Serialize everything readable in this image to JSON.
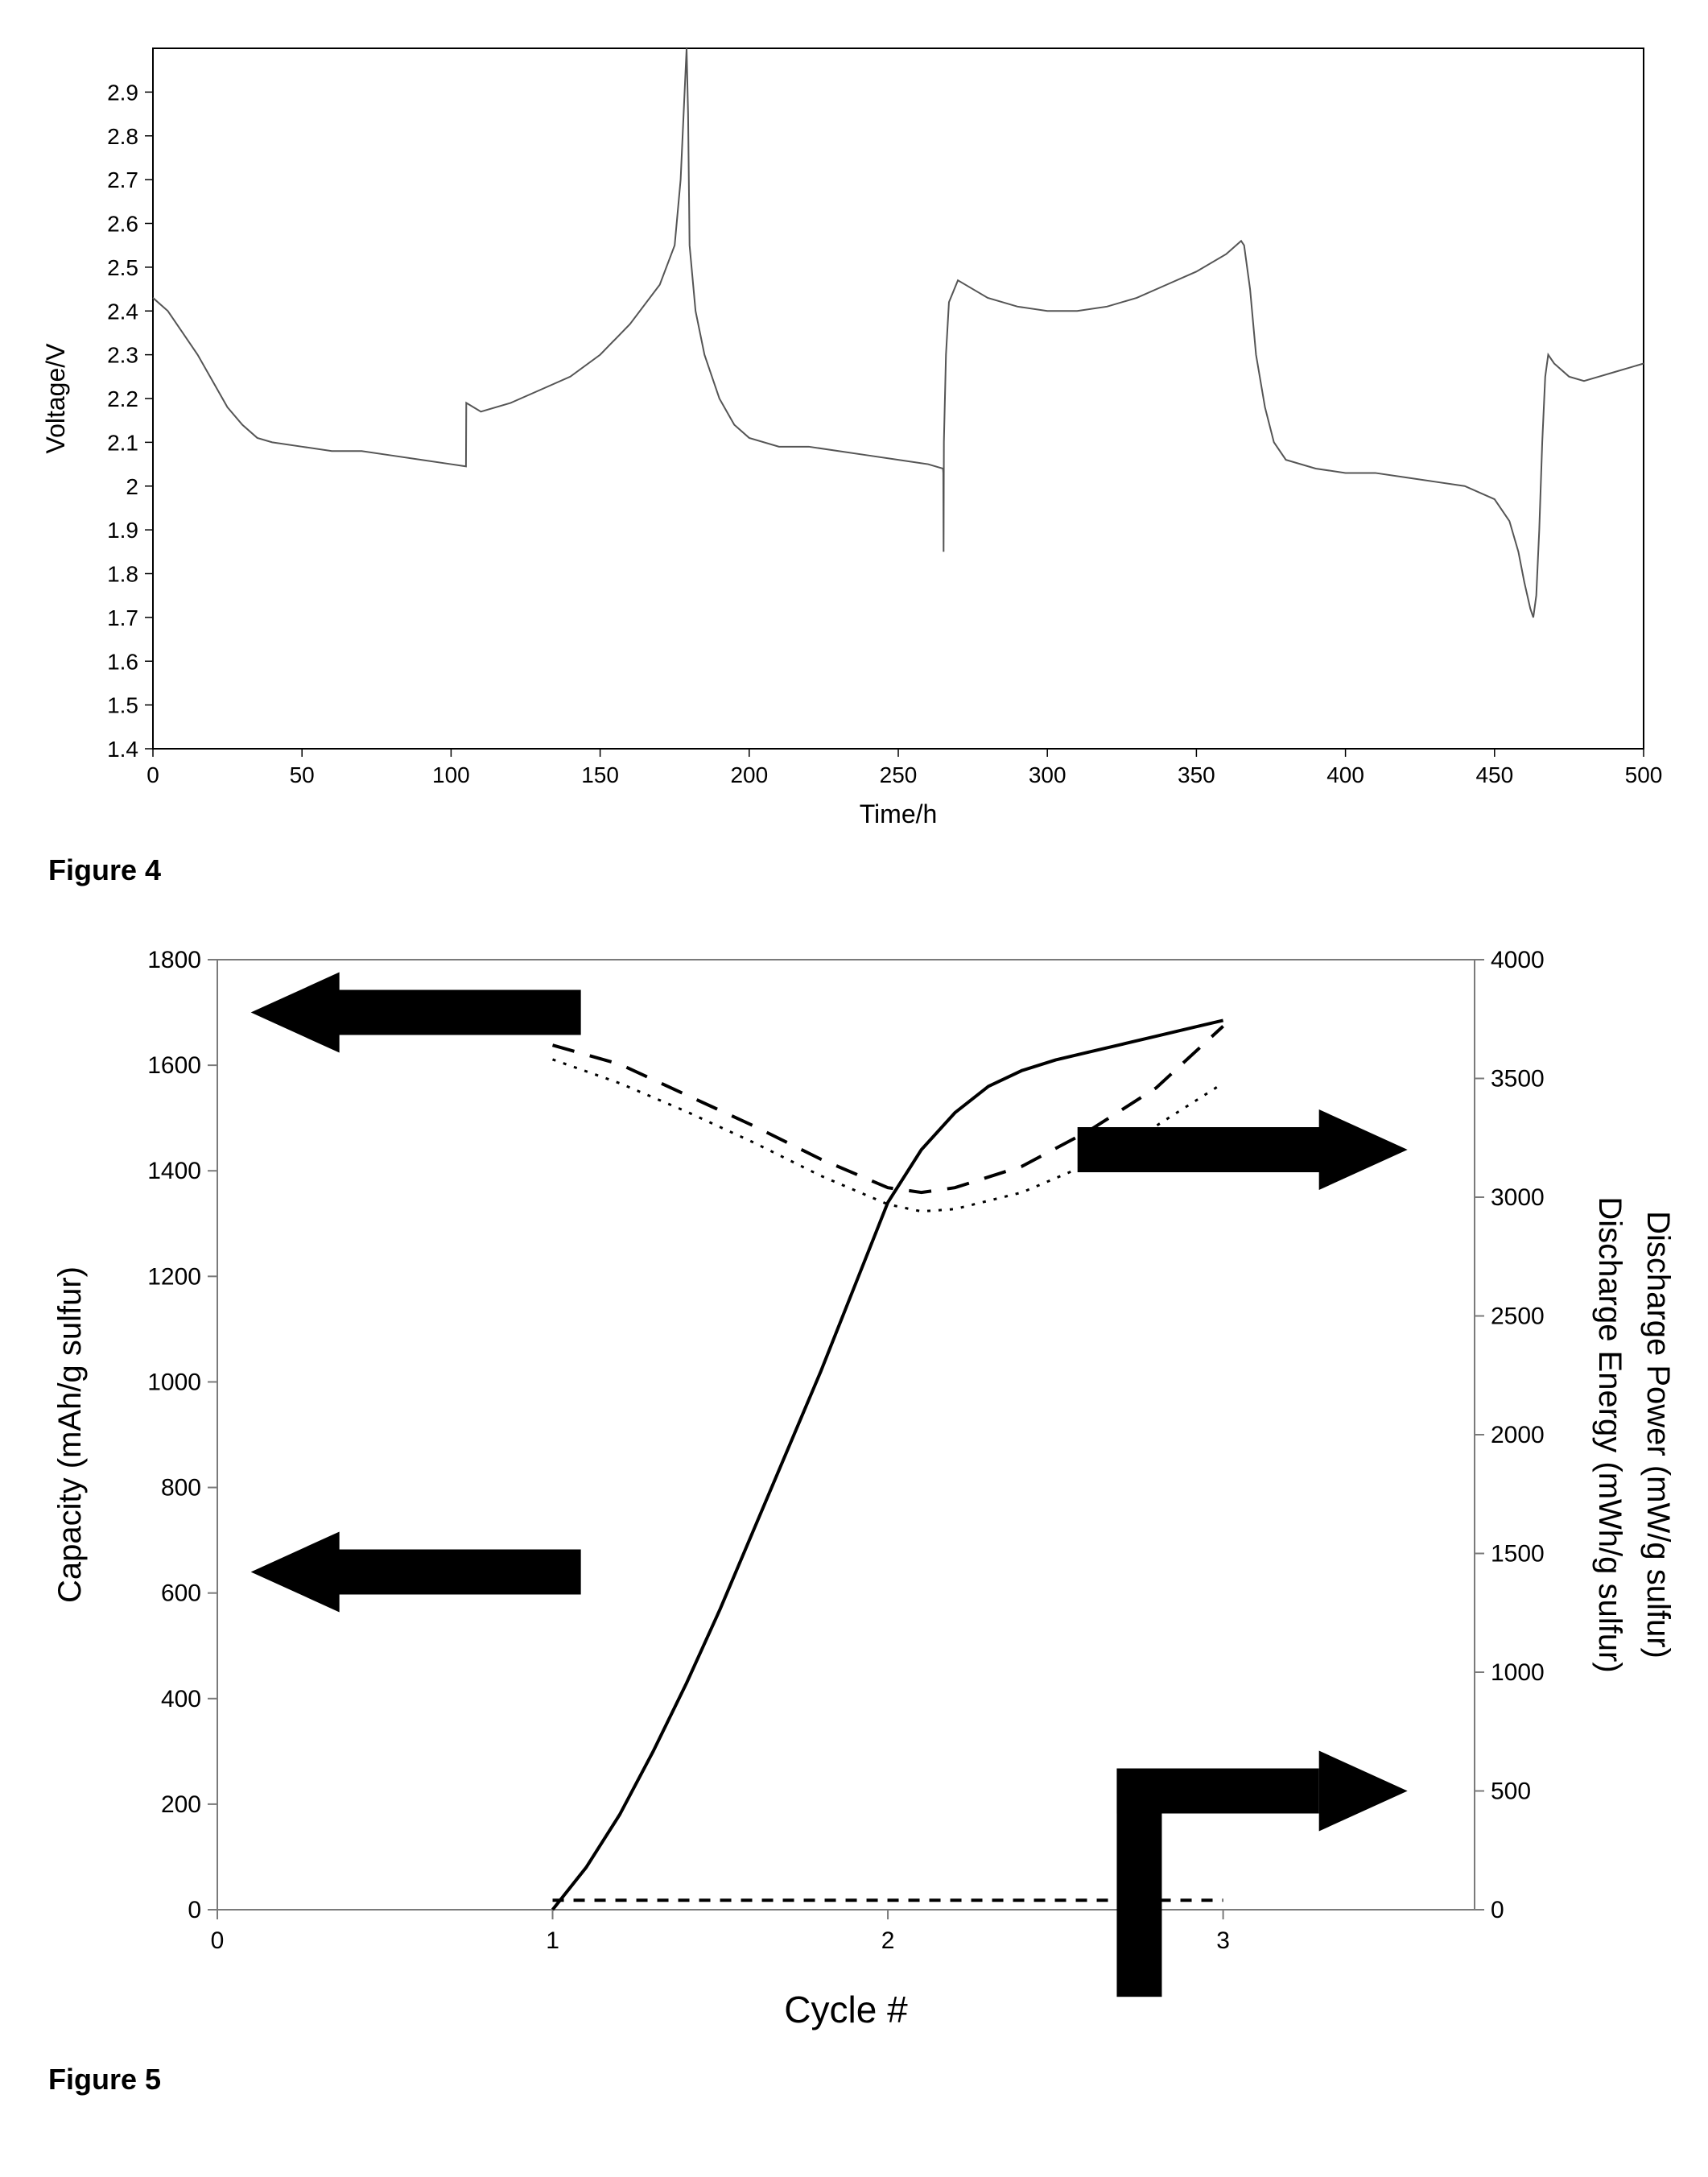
{
  "figure4": {
    "type": "line",
    "caption": "Figure 4",
    "xlabel": "Time/h",
    "ylabel": "Voltage/V",
    "xlim": [
      0,
      500
    ],
    "ylim": [
      1.4,
      3.0
    ],
    "xticks": [
      0,
      50,
      100,
      150,
      200,
      250,
      300,
      350,
      400,
      450,
      500
    ],
    "yticks": [
      1.4,
      1.5,
      1.6,
      1.7,
      1.8,
      1.9,
      2.0,
      2.1,
      2.2,
      2.3,
      2.4,
      2.5,
      2.6,
      2.7,
      2.8,
      2.9
    ],
    "line_color": "#555555",
    "line_width": 2,
    "background_color": "#ffffff",
    "border_color": "#000000",
    "tick_font_size": 28,
    "label_font_size": 32,
    "data": [
      [
        0,
        2.43
      ],
      [
        5,
        2.4
      ],
      [
        10,
        2.35
      ],
      [
        15,
        2.3
      ],
      [
        20,
        2.24
      ],
      [
        25,
        2.18
      ],
      [
        30,
        2.14
      ],
      [
        35,
        2.11
      ],
      [
        40,
        2.1
      ],
      [
        50,
        2.09
      ],
      [
        60,
        2.08
      ],
      [
        70,
        2.08
      ],
      [
        80,
        2.07
      ],
      [
        90,
        2.06
      ],
      [
        100,
        2.05
      ],
      [
        105,
        2.045
      ],
      [
        105.1,
        2.19
      ],
      [
        110,
        2.17
      ],
      [
        120,
        2.19
      ],
      [
        130,
        2.22
      ],
      [
        140,
        2.25
      ],
      [
        150,
        2.3
      ],
      [
        160,
        2.37
      ],
      [
        170,
        2.46
      ],
      [
        175,
        2.55
      ],
      [
        177,
        2.7
      ],
      [
        178,
        2.85
      ],
      [
        179,
        3.0
      ],
      [
        179.5,
        2.85
      ],
      [
        180,
        2.55
      ],
      [
        182,
        2.4
      ],
      [
        185,
        2.3
      ],
      [
        190,
        2.2
      ],
      [
        195,
        2.14
      ],
      [
        200,
        2.11
      ],
      [
        210,
        2.09
      ],
      [
        220,
        2.09
      ],
      [
        230,
        2.08
      ],
      [
        240,
        2.07
      ],
      [
        250,
        2.06
      ],
      [
        260,
        2.05
      ],
      [
        265,
        2.04
      ],
      [
        265.1,
        2.03
      ],
      [
        265.2,
        1.85
      ],
      [
        265.3,
        2.1
      ],
      [
        266,
        2.3
      ],
      [
        267,
        2.42
      ],
      [
        270,
        2.47
      ],
      [
        275,
        2.45
      ],
      [
        280,
        2.43
      ],
      [
        290,
        2.41
      ],
      [
        300,
        2.4
      ],
      [
        310,
        2.4
      ],
      [
        320,
        2.41
      ],
      [
        330,
        2.43
      ],
      [
        340,
        2.46
      ],
      [
        350,
        2.49
      ],
      [
        360,
        2.53
      ],
      [
        365,
        2.56
      ],
      [
        366,
        2.55
      ],
      [
        368,
        2.45
      ],
      [
        370,
        2.3
      ],
      [
        373,
        2.18
      ],
      [
        376,
        2.1
      ],
      [
        380,
        2.06
      ],
      [
        390,
        2.04
      ],
      [
        400,
        2.03
      ],
      [
        410,
        2.03
      ],
      [
        420,
        2.02
      ],
      [
        430,
        2.01
      ],
      [
        440,
        2.0
      ],
      [
        450,
        1.97
      ],
      [
        455,
        1.92
      ],
      [
        458,
        1.85
      ],
      [
        460,
        1.78
      ],
      [
        462,
        1.72
      ],
      [
        463,
        1.7
      ],
      [
        464,
        1.75
      ],
      [
        465,
        1.9
      ],
      [
        466,
        2.1
      ],
      [
        467,
        2.25
      ],
      [
        468,
        2.3
      ],
      [
        470,
        2.28
      ],
      [
        475,
        2.25
      ],
      [
        480,
        2.24
      ],
      [
        485,
        2.25
      ],
      [
        490,
        2.26
      ],
      [
        495,
        2.27
      ],
      [
        500,
        2.28
      ]
    ]
  },
  "figure5": {
    "type": "multi-axis-line",
    "caption": "Figure 5",
    "xlabel": "Cycle #",
    "ylabel_left": "Capacity (mAh/g sulfur)",
    "ylabel_right1": "Discharge Energy (mWh/g sulfur)",
    "ylabel_right2": "Discharge Power (mW/g sulfur)",
    "xlim": [
      0,
      3.75
    ],
    "ylim_left": [
      0,
      1800
    ],
    "ylim_right": [
      0,
      4000
    ],
    "xticks": [
      0,
      1,
      2,
      3
    ],
    "yticks_left": [
      0,
      200,
      400,
      600,
      800,
      1000,
      1200,
      1400,
      1600,
      1800
    ],
    "yticks_right": [
      0,
      500,
      1000,
      1500,
      2000,
      2500,
      3000,
      3500,
      4000
    ],
    "background_color": "#ffffff",
    "border_color": "#7a7a7a",
    "border_width": 2,
    "tick_font_size": 30,
    "label_font_size": 40,
    "arrow_color": "#000000",
    "series": {
      "capacity": {
        "style": "solid",
        "width": 4,
        "color": "#000000",
        "axis": "left",
        "data": [
          [
            1,
            0
          ],
          [
            1.1,
            80
          ],
          [
            1.2,
            180
          ],
          [
            1.3,
            300
          ],
          [
            1.4,
            430
          ],
          [
            1.5,
            570
          ],
          [
            1.6,
            720
          ],
          [
            1.7,
            870
          ],
          [
            1.8,
            1020
          ],
          [
            1.9,
            1180
          ],
          [
            2.0,
            1340
          ],
          [
            2.1,
            1440
          ],
          [
            2.2,
            1510
          ],
          [
            2.3,
            1560
          ],
          [
            2.4,
            1590
          ],
          [
            2.5,
            1610
          ],
          [
            2.6,
            1625
          ],
          [
            2.7,
            1640
          ],
          [
            2.8,
            1655
          ],
          [
            2.9,
            1670
          ],
          [
            3.0,
            1685
          ]
        ]
      },
      "discharge_energy": {
        "style": "long-dash",
        "width": 4,
        "color": "#000000",
        "axis": "right",
        "data": [
          [
            1,
            3640
          ],
          [
            1.2,
            3560
          ],
          [
            1.4,
            3430
          ],
          [
            1.6,
            3300
          ],
          [
            1.8,
            3160
          ],
          [
            2.0,
            3040
          ],
          [
            2.1,
            3020
          ],
          [
            2.2,
            3040
          ],
          [
            2.4,
            3130
          ],
          [
            2.6,
            3280
          ],
          [
            2.8,
            3460
          ],
          [
            3.0,
            3720
          ]
        ]
      },
      "discharge_energy_dotted": {
        "style": "dotted",
        "width": 3,
        "color": "#000000",
        "axis": "right",
        "data": [
          [
            1,
            3580
          ],
          [
            1.2,
            3480
          ],
          [
            1.4,
            3360
          ],
          [
            1.6,
            3230
          ],
          [
            1.8,
            3090
          ],
          [
            2.0,
            2970
          ],
          [
            2.1,
            2940
          ],
          [
            2.2,
            2950
          ],
          [
            2.4,
            3020
          ],
          [
            2.6,
            3140
          ],
          [
            2.8,
            3300
          ],
          [
            3.0,
            3480
          ]
        ]
      },
      "discharge_power": {
        "style": "short-dash",
        "width": 4,
        "color": "#000000",
        "axis": "right",
        "data": [
          [
            1,
            40
          ],
          [
            1.5,
            40
          ],
          [
            2.0,
            40
          ],
          [
            2.5,
            40
          ],
          [
            3.0,
            40
          ]
        ]
      }
    }
  }
}
